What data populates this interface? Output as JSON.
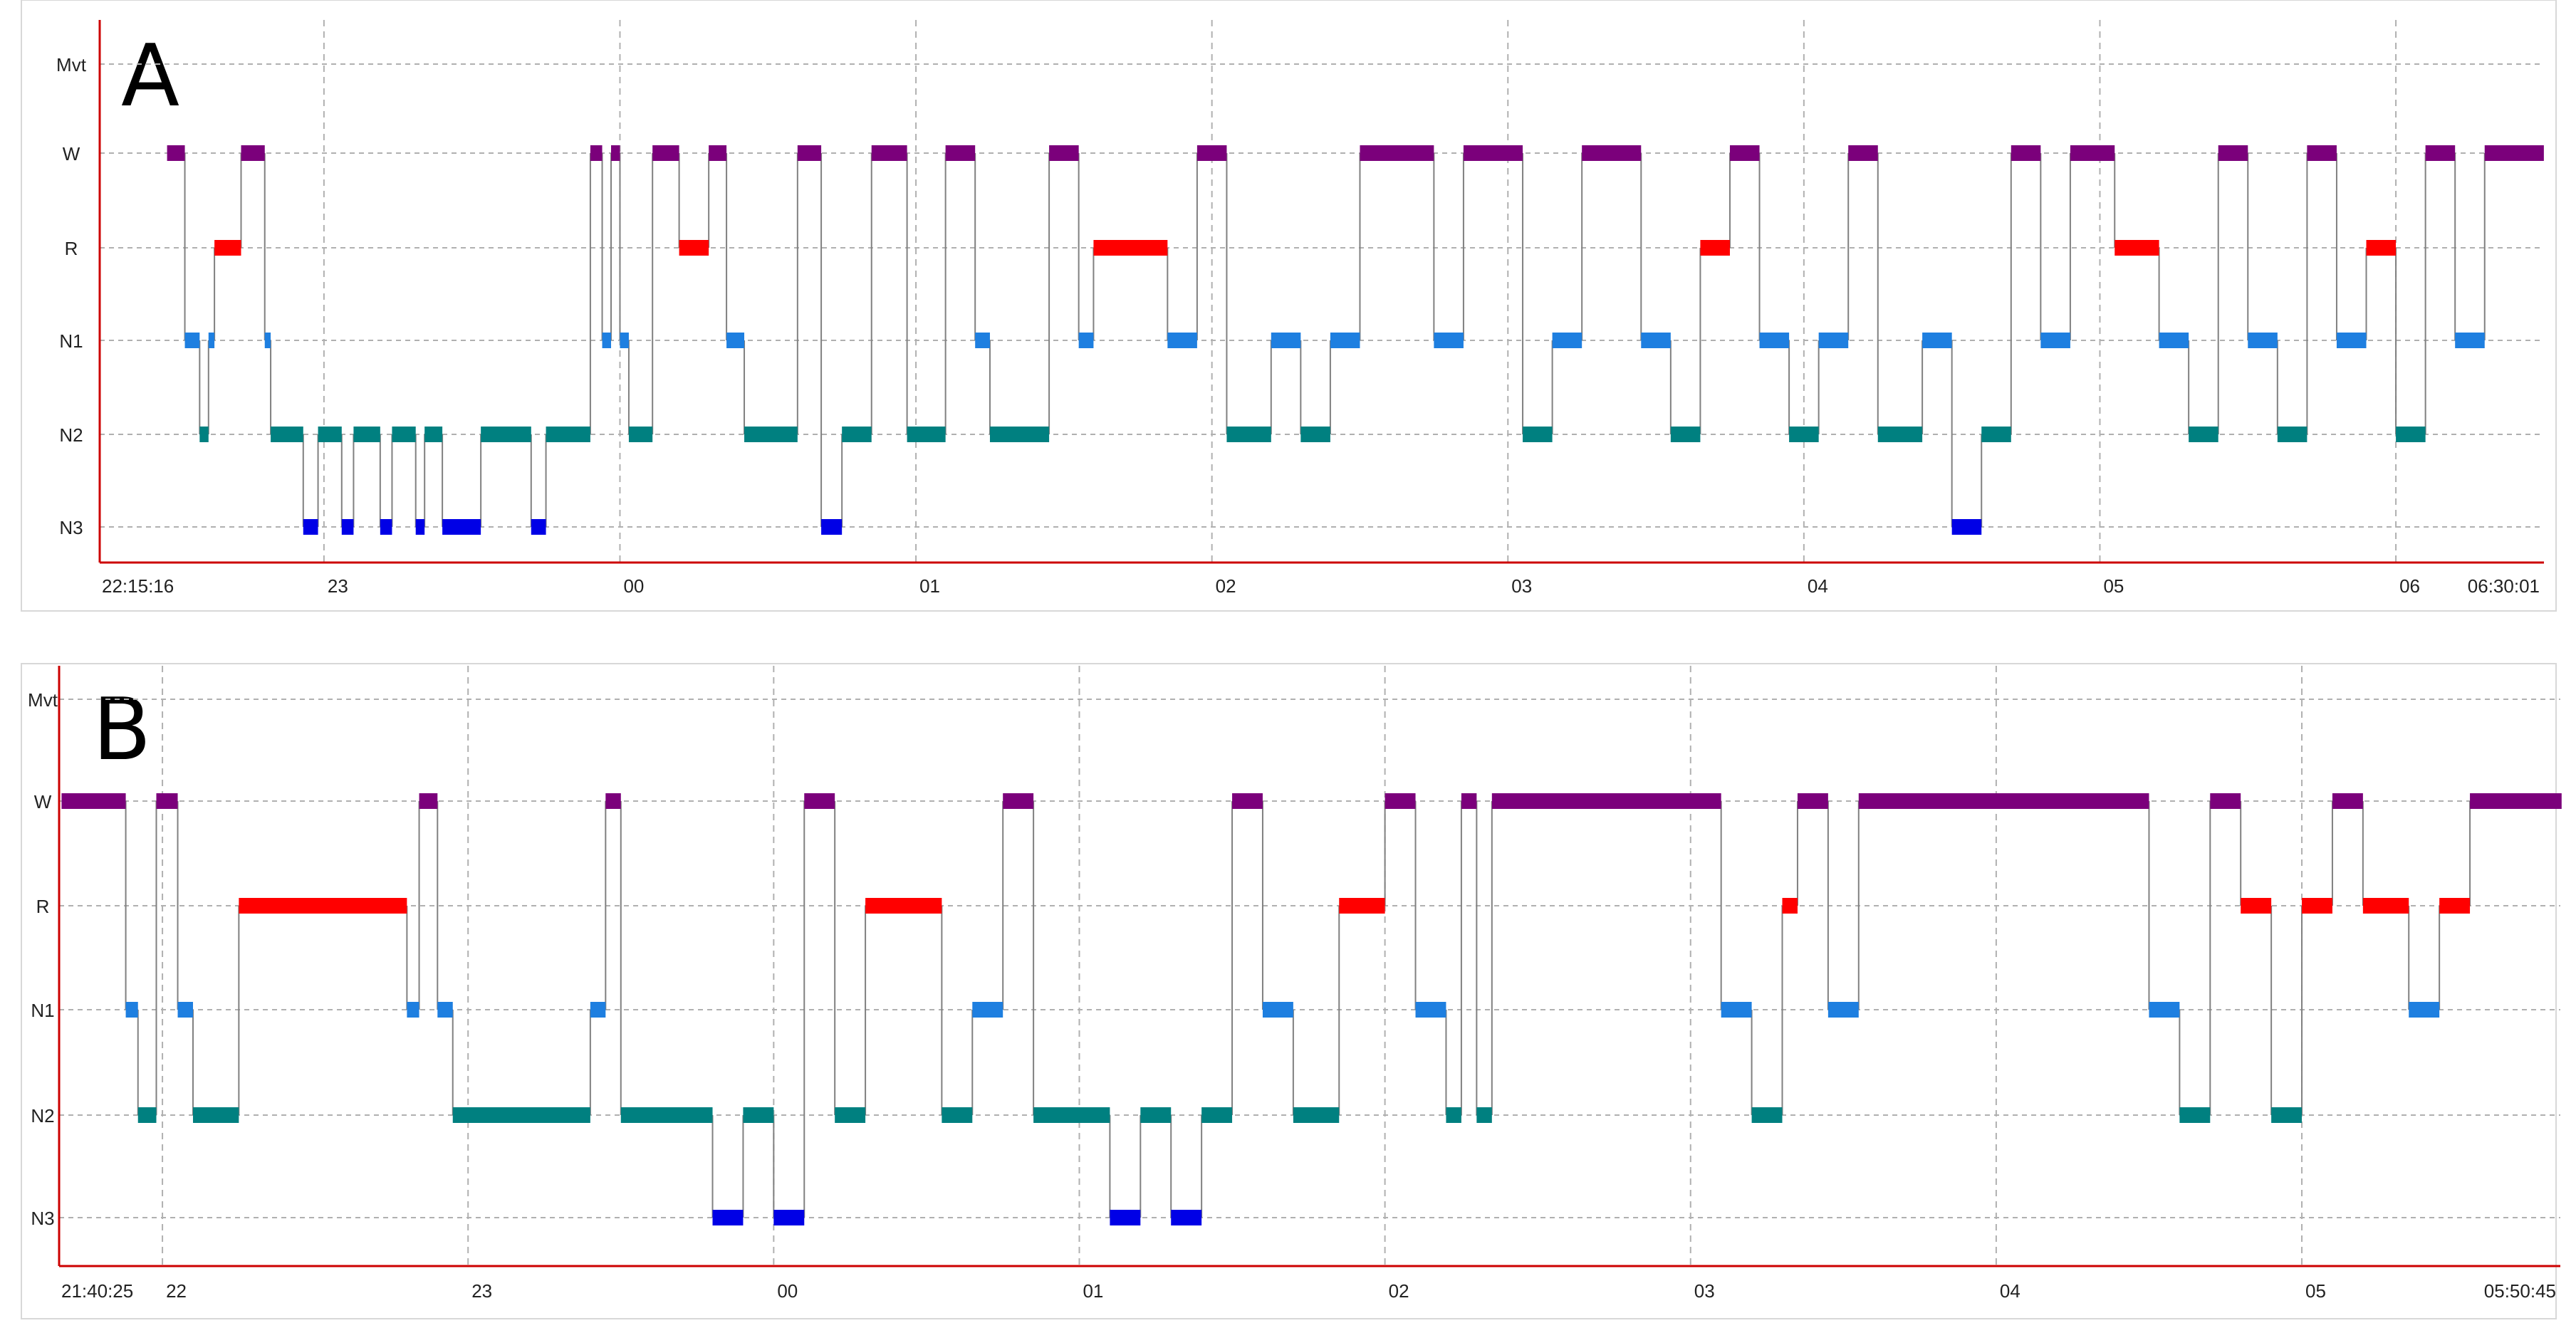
{
  "colors": {
    "W": "#7b007b",
    "R": "#ff0000",
    "N1": "#1e7fe0",
    "N2": "#008080",
    "N3": "#0000e6",
    "Mvt": "#7b007b",
    "transition": "#808080",
    "axis": "#cc0000",
    "grid": "#b0b0b0"
  },
  "chart_data": [
    {
      "type": "hypnogram",
      "panel_label": "A",
      "stage_labels": [
        "Mvt",
        "W",
        "R",
        "N1",
        "N2",
        "N3"
      ],
      "start_time": "22:15:16",
      "end_time": "06:30:01",
      "xlim_hours": [
        22.2544,
        30.5003
      ],
      "x_ticks": [
        {
          "label": "22:15:16",
          "h": 22.2544
        },
        {
          "label": "23",
          "h": 23
        },
        {
          "label": "00",
          "h": 24
        },
        {
          "label": "01",
          "h": 25
        },
        {
          "label": "02",
          "h": 26
        },
        {
          "label": "03",
          "h": 27
        },
        {
          "label": "04",
          "h": 28
        },
        {
          "label": "05",
          "h": 29
        },
        {
          "label": "06",
          "h": 30
        },
        {
          "label": "06:30:01",
          "h": 30.5003
        }
      ],
      "grid_hours": [
        23,
        24,
        25,
        26,
        27,
        28,
        29,
        30
      ],
      "epochs": [
        [
          "W",
          22.47,
          22.53
        ],
        [
          "N1",
          22.53,
          22.58
        ],
        [
          "N2",
          22.58,
          22.61
        ],
        [
          "N1",
          22.61,
          22.63
        ],
        [
          "R",
          22.63,
          22.72
        ],
        [
          "W",
          22.72,
          22.8
        ],
        [
          "N1",
          22.8,
          22.82
        ],
        [
          "N2",
          22.82,
          22.93
        ],
        [
          "N3",
          22.93,
          22.98
        ],
        [
          "N2",
          22.98,
          23.06
        ],
        [
          "N3",
          23.06,
          23.1
        ],
        [
          "N2",
          23.1,
          23.19
        ],
        [
          "N3",
          23.19,
          23.23
        ],
        [
          "N2",
          23.23,
          23.31
        ],
        [
          "N3",
          23.31,
          23.34
        ],
        [
          "N2",
          23.34,
          23.4
        ],
        [
          "N3",
          23.4,
          23.53
        ],
        [
          "N2",
          23.53,
          23.7
        ],
        [
          "N3",
          23.7,
          23.75
        ],
        [
          "N2",
          23.75,
          23.9
        ],
        [
          "W",
          23.9,
          23.94
        ],
        [
          "N1",
          23.94,
          23.97
        ],
        [
          "W",
          23.97,
          24.0
        ],
        [
          "N1",
          24.0,
          24.03
        ],
        [
          "N2",
          24.03,
          24.11
        ],
        [
          "W",
          24.11,
          24.2
        ],
        [
          "R",
          24.2,
          24.3
        ],
        [
          "W",
          24.3,
          24.36
        ],
        [
          "N1",
          24.36,
          24.42
        ],
        [
          "N2",
          24.42,
          24.6
        ],
        [
          "W",
          24.6,
          24.68
        ],
        [
          "N3",
          24.68,
          24.75
        ],
        [
          "N2",
          24.75,
          24.85
        ],
        [
          "W",
          24.85,
          24.97
        ],
        [
          "N2",
          24.97,
          25.1
        ],
        [
          "W",
          25.1,
          25.2
        ],
        [
          "N1",
          25.2,
          25.25
        ],
        [
          "N2",
          25.25,
          25.45
        ],
        [
          "W",
          25.45,
          25.55
        ],
        [
          "N1",
          25.55,
          25.6
        ],
        [
          "R",
          25.6,
          25.85
        ],
        [
          "N1",
          25.85,
          25.95
        ],
        [
          "W",
          25.95,
          26.05
        ],
        [
          "N2",
          26.05,
          26.2
        ],
        [
          "N1",
          26.2,
          26.3
        ],
        [
          "N2",
          26.3,
          26.4
        ],
        [
          "N1",
          26.4,
          26.5
        ],
        [
          "W",
          26.5,
          26.75
        ],
        [
          "N1",
          26.75,
          26.85
        ],
        [
          "W",
          26.85,
          27.05
        ],
        [
          "N2",
          27.05,
          27.15
        ],
        [
          "N1",
          27.15,
          27.25
        ],
        [
          "W",
          27.25,
          27.45
        ],
        [
          "N1",
          27.45,
          27.55
        ],
        [
          "N2",
          27.55,
          27.65
        ],
        [
          "R",
          27.65,
          27.75
        ],
        [
          "W",
          27.75,
          27.85
        ],
        [
          "N1",
          27.85,
          27.95
        ],
        [
          "N2",
          27.95,
          28.05
        ],
        [
          "N1",
          28.05,
          28.15
        ],
        [
          "W",
          28.15,
          28.25
        ],
        [
          "N2",
          28.25,
          28.4
        ],
        [
          "N1",
          28.4,
          28.5
        ],
        [
          "N3",
          28.5,
          28.6
        ],
        [
          "N2",
          28.6,
          28.7
        ],
        [
          "W",
          28.7,
          28.8
        ],
        [
          "N1",
          28.8,
          28.9
        ],
        [
          "W",
          28.9,
          29.05
        ],
        [
          "R",
          29.05,
          29.2
        ],
        [
          "N1",
          29.2,
          29.3
        ],
        [
          "N2",
          29.3,
          29.4
        ],
        [
          "W",
          29.4,
          29.5
        ],
        [
          "N1",
          29.5,
          29.6
        ],
        [
          "N2",
          29.6,
          29.7
        ],
        [
          "W",
          29.7,
          29.8
        ],
        [
          "N1",
          29.8,
          29.9
        ],
        [
          "R",
          29.9,
          30.0
        ],
        [
          "N2",
          30.0,
          30.1
        ],
        [
          "W",
          30.1,
          30.2
        ],
        [
          "N1",
          30.2,
          30.3
        ],
        [
          "W",
          30.3,
          30.5
        ]
      ]
    },
    {
      "type": "hypnogram",
      "panel_label": "B",
      "stage_labels": [
        "Mvt",
        "W",
        "R",
        "N1",
        "N2",
        "N3"
      ],
      "start_time": "21:40:25",
      "end_time": "05:50:45",
      "xlim_hours": [
        21.6736,
        29.8458
      ],
      "x_ticks": [
        {
          "label": "21:40:25",
          "h": 21.6736
        },
        {
          "label": "22",
          "h": 22
        },
        {
          "label": "23",
          "h": 23
        },
        {
          "label": "00",
          "h": 24
        },
        {
          "label": "01",
          "h": 25
        },
        {
          "label": "02",
          "h": 26
        },
        {
          "label": "03",
          "h": 27
        },
        {
          "label": "04",
          "h": 28
        },
        {
          "label": "05",
          "h": 29
        },
        {
          "label": "05:50:45",
          "h": 29.8458
        }
      ],
      "grid_hours": [
        22,
        23,
        24,
        25,
        26,
        27,
        28,
        29
      ],
      "epochs": [
        [
          "W",
          21.67,
          21.88
        ],
        [
          "N1",
          21.88,
          21.92
        ],
        [
          "N2",
          21.92,
          21.98
        ],
        [
          "W",
          21.98,
          22.05
        ],
        [
          "N1",
          22.05,
          22.1
        ],
        [
          "N2",
          22.1,
          22.25
        ],
        [
          "R",
          22.25,
          22.8
        ],
        [
          "N1",
          22.8,
          22.84
        ],
        [
          "W",
          22.84,
          22.9
        ],
        [
          "N1",
          22.9,
          22.95
        ],
        [
          "N2",
          22.95,
          23.4
        ],
        [
          "N1",
          23.4,
          23.45
        ],
        [
          "W",
          23.45,
          23.5
        ],
        [
          "N2",
          23.5,
          23.8
        ],
        [
          "N3",
          23.8,
          23.9
        ],
        [
          "N2",
          23.9,
          24.0
        ],
        [
          "N3",
          24.0,
          24.1
        ],
        [
          "W",
          24.1,
          24.2
        ],
        [
          "N2",
          24.2,
          24.3
        ],
        [
          "R",
          24.3,
          24.55
        ],
        [
          "N2",
          24.55,
          24.65
        ],
        [
          "N1",
          24.65,
          24.75
        ],
        [
          "W",
          24.75,
          24.85
        ],
        [
          "N2",
          24.85,
          25.1
        ],
        [
          "N3",
          25.1,
          25.2
        ],
        [
          "N2",
          25.2,
          25.3
        ],
        [
          "N3",
          25.3,
          25.4
        ],
        [
          "N2",
          25.4,
          25.5
        ],
        [
          "W",
          25.5,
          25.6
        ],
        [
          "N1",
          25.6,
          25.7
        ],
        [
          "N2",
          25.7,
          25.85
        ],
        [
          "R",
          25.85,
          26.0
        ],
        [
          "W",
          26.0,
          26.1
        ],
        [
          "N1",
          26.1,
          26.2
        ],
        [
          "N2",
          26.2,
          26.25
        ],
        [
          "W",
          26.25,
          26.3
        ],
        [
          "N2",
          26.3,
          26.35
        ],
        [
          "W",
          26.35,
          27.1
        ],
        [
          "N1",
          27.1,
          27.2
        ],
        [
          "N2",
          27.2,
          27.3
        ],
        [
          "R",
          27.3,
          27.35
        ],
        [
          "W",
          27.35,
          27.45
        ],
        [
          "N1",
          27.45,
          27.55
        ],
        [
          "W",
          27.55,
          28.5
        ],
        [
          "N1",
          28.5,
          28.6
        ],
        [
          "N2",
          28.6,
          28.7
        ],
        [
          "W",
          28.7,
          28.8
        ],
        [
          "R",
          28.8,
          28.9
        ],
        [
          "N2",
          28.9,
          29.0
        ],
        [
          "R",
          29.0,
          29.1
        ],
        [
          "W",
          29.1,
          29.2
        ],
        [
          "R",
          29.2,
          29.35
        ],
        [
          "N1",
          29.35,
          29.45
        ],
        [
          "R",
          29.45,
          29.55
        ],
        [
          "W",
          29.55,
          29.85
        ]
      ]
    }
  ]
}
